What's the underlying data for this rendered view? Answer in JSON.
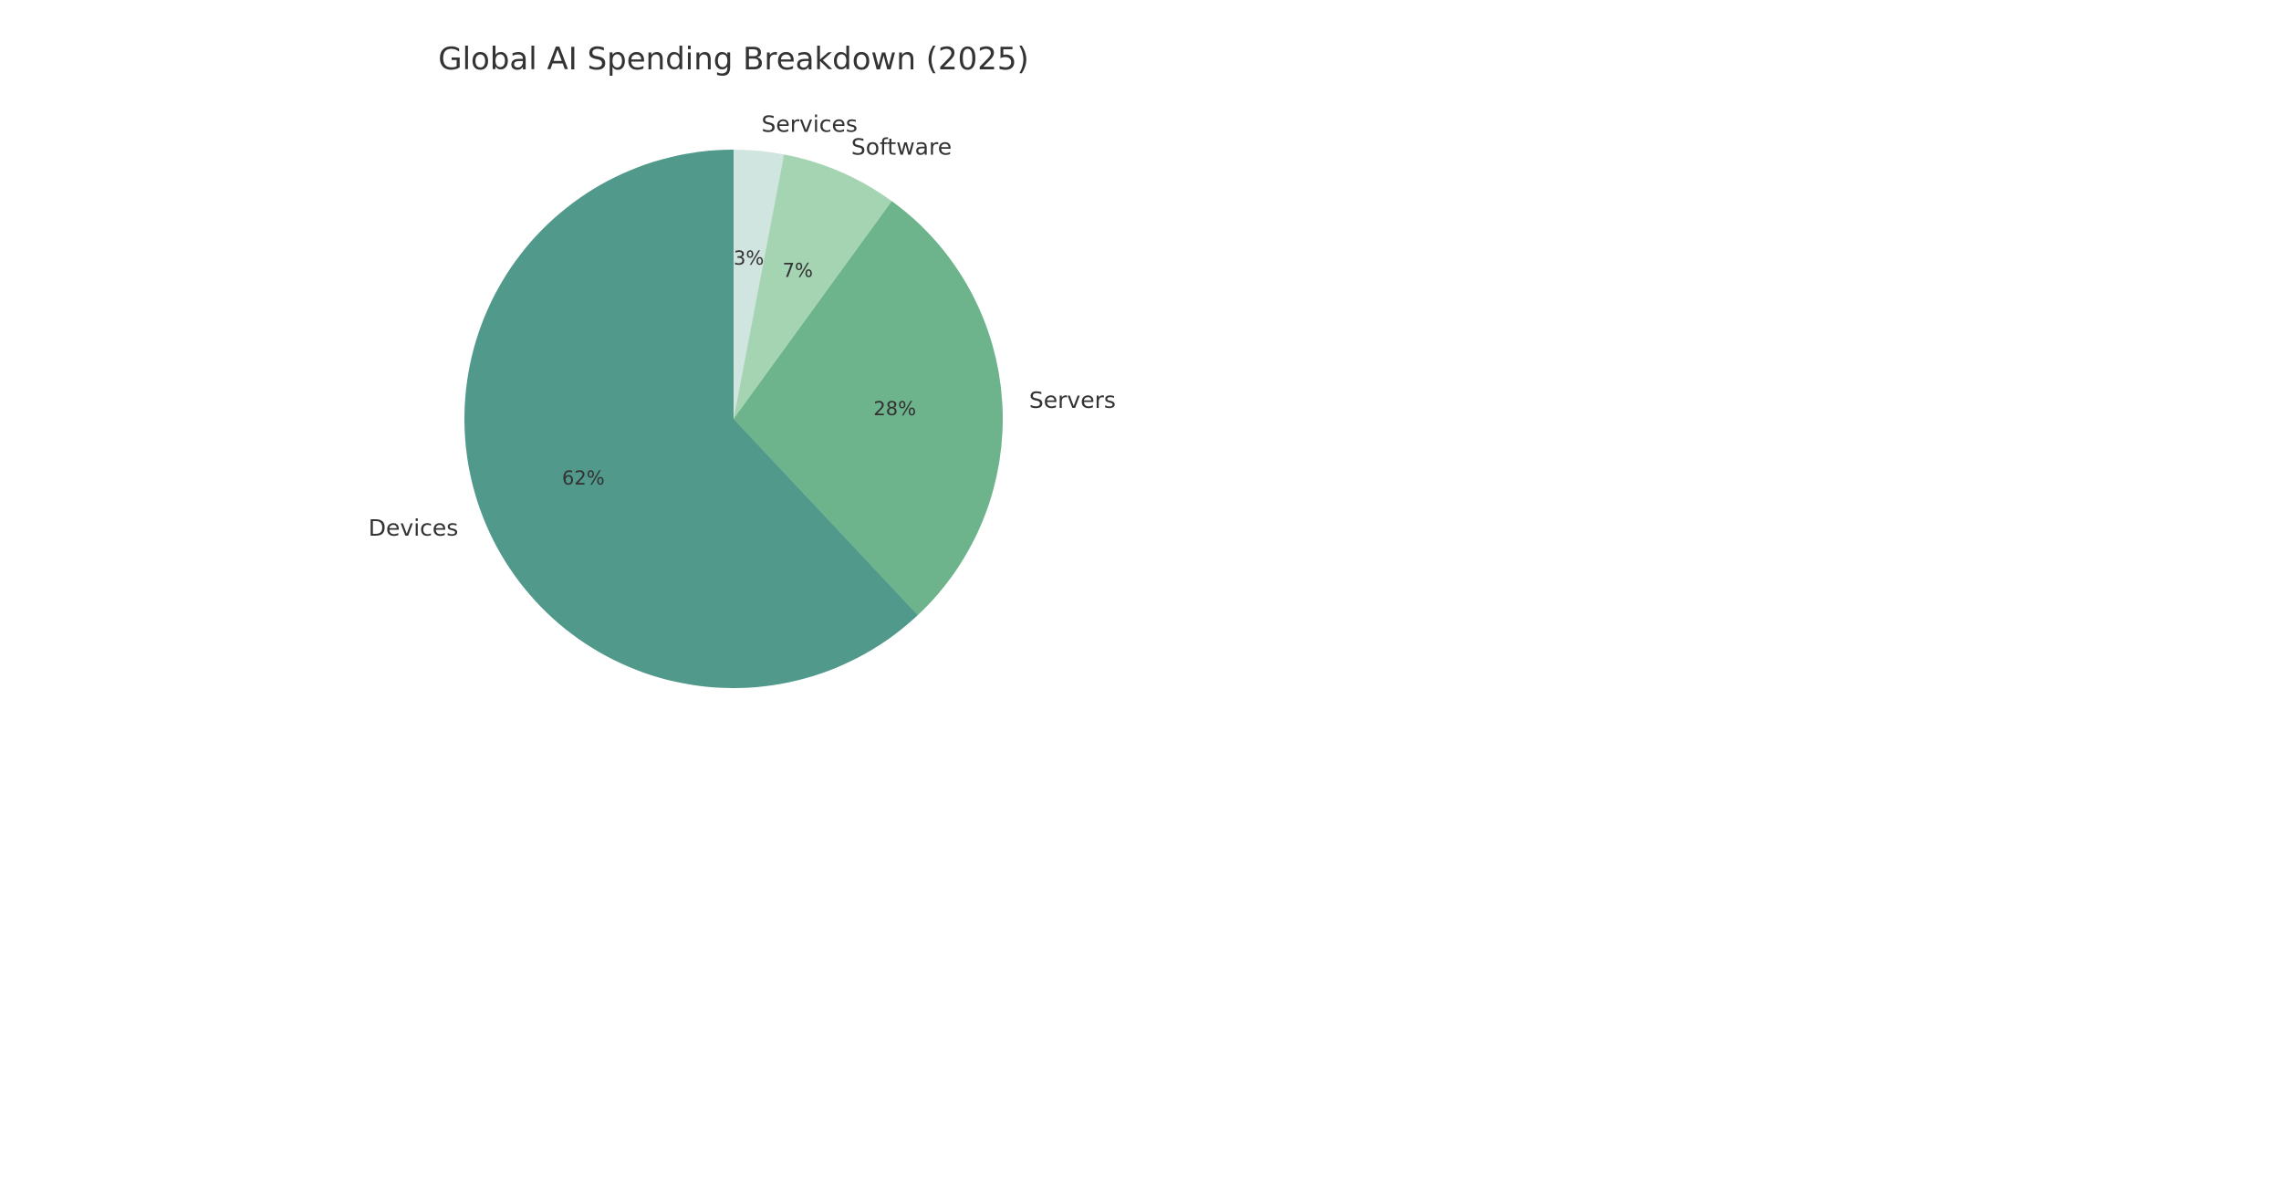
{
  "chart_data": {
    "type": "pie",
    "title": "Global AI Spending Breakdown (2025)",
    "start_angle_deg": 90,
    "direction": "clockwise",
    "slices": [
      {
        "label": "Services",
        "value": 3,
        "pct_label": "3%",
        "color": "#d1e5e0"
      },
      {
        "label": "Software",
        "value": 7,
        "pct_label": "7%",
        "color": "#a5d4b3"
      },
      {
        "label": "Servers",
        "value": 28,
        "pct_label": "28%",
        "color": "#6db38b"
      },
      {
        "label": "Devices",
        "value": 62,
        "pct_label": "62%",
        "color": "#50998b"
      }
    ]
  }
}
